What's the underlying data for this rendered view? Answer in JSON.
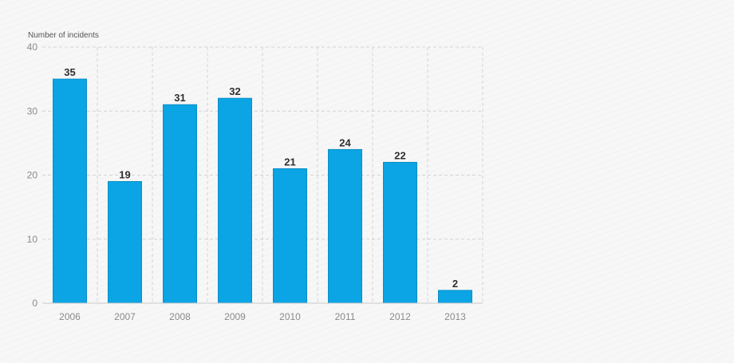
{
  "chart_data": {
    "type": "bar",
    "ylabel": "Number of incidents",
    "categories": [
      "2006",
      "2007",
      "2008",
      "2009",
      "2010",
      "2011",
      "2012",
      "2013"
    ],
    "values": [
      35,
      19,
      31,
      32,
      21,
      24,
      22,
      2
    ],
    "value_labels": [
      "35",
      "19",
      "31",
      "32",
      "21",
      "24",
      "22",
      "2"
    ],
    "ylim": [
      0,
      40
    ],
    "yticks": [
      0,
      10,
      20,
      30,
      40
    ],
    "grid": true,
    "colors": {
      "bar": "#0ba4e4",
      "bar_edge": "#0a8fc6",
      "value_label": "#2f2f2f",
      "tick_label": "#8a8a8a",
      "grid": "#d4d4d4",
      "axis": "#c8c8c8"
    }
  }
}
